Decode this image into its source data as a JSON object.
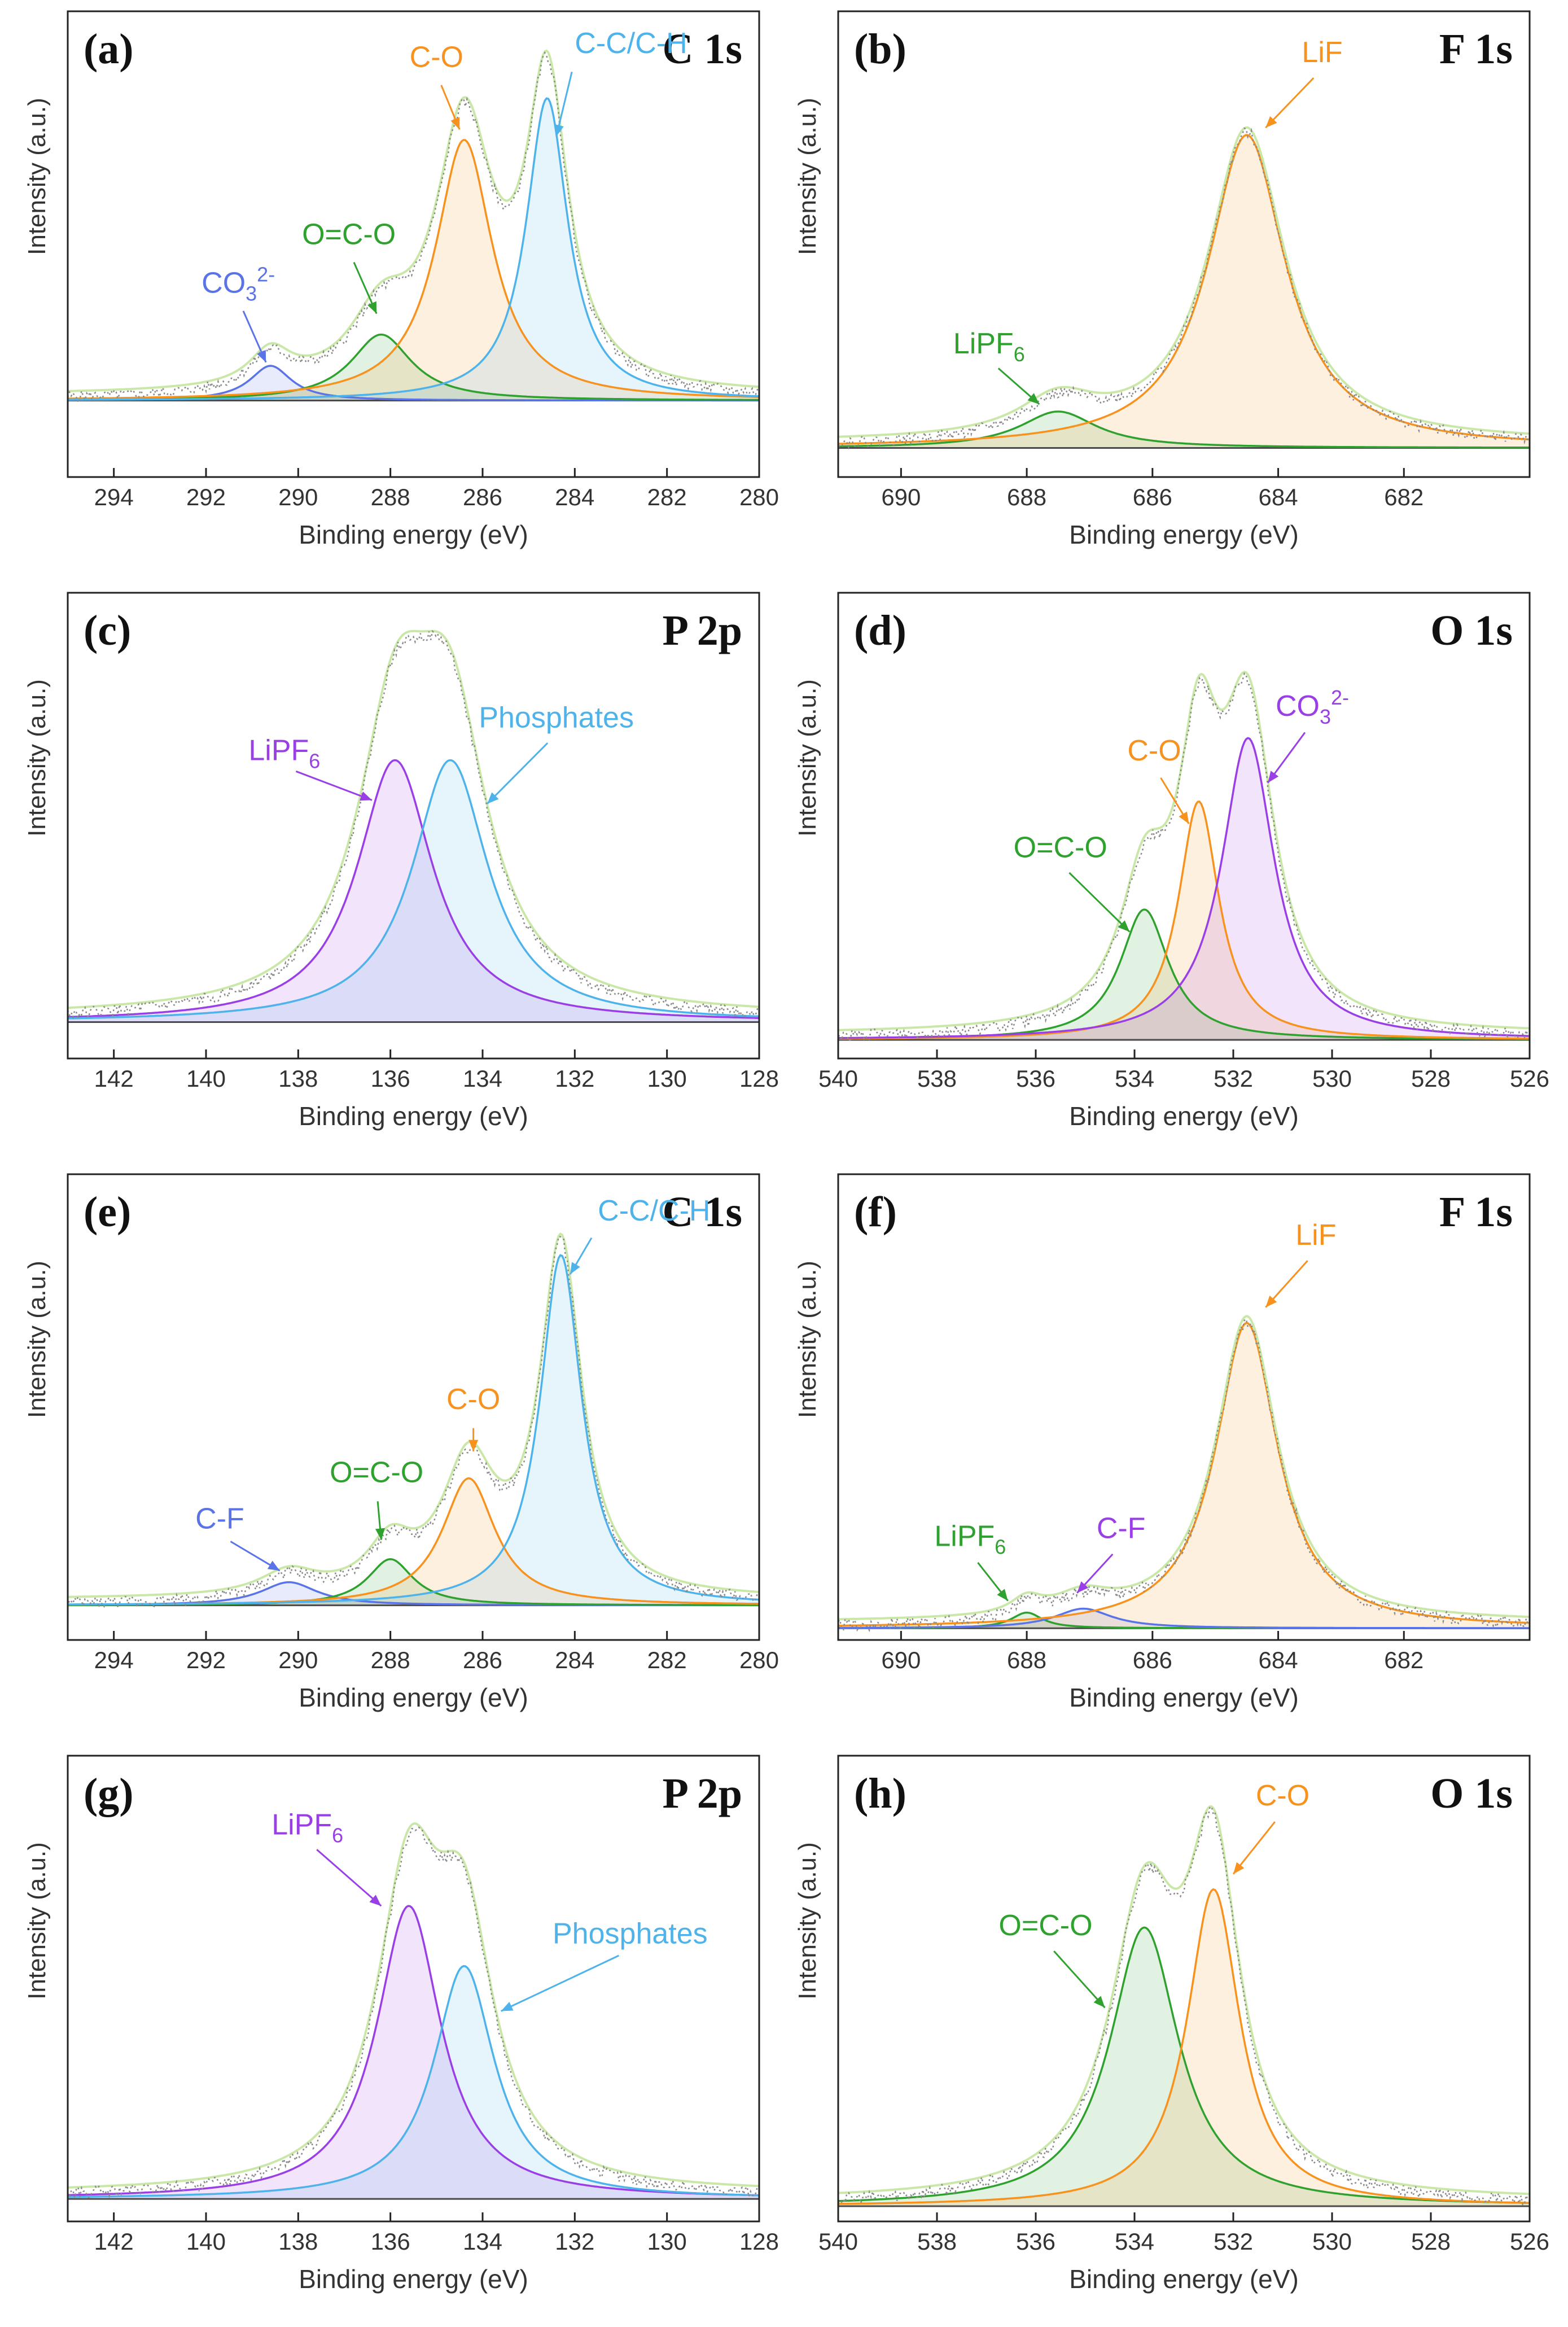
{
  "figure": {
    "xlabel_text": "Binding energy  (eV)",
    "ylabel_text": "Intensity (a.u.)"
  },
  "colors": {
    "blue": "#5a73e6",
    "green": "#2fa12f",
    "orange": "#f7921e",
    "sky": "#4db3ea",
    "purple": "#9a3fe6",
    "envelope": "#c9e8a8",
    "raw": "#8a8a8a",
    "background_line": "#4a4a4a"
  },
  "chart_data": [
    {
      "panel": "(a)",
      "title": "C 1s",
      "type": "line",
      "xlabel": "Binding energy  (eV)",
      "ylabel": "Intensity (a.u.)",
      "xlim": [
        295,
        280
      ],
      "ticks": [
        294,
        292,
        290,
        288,
        286,
        284,
        282,
        280
      ],
      "ylim": [
        -0.2,
        1.14
      ],
      "baseline": 0.02,
      "peaks": [
        {
          "name": "CO3 2-",
          "label": "CO",
          "sub": "3",
          "sup": "2-",
          "center": 290.6,
          "height": 0.1,
          "width": 0.55,
          "color": "blue"
        },
        {
          "name": "O=C-O",
          "label": "O=C-O",
          "center": 288.2,
          "height": 0.19,
          "width": 0.8,
          "color": "green"
        },
        {
          "name": "C-O",
          "label": "C-O",
          "center": 286.4,
          "height": 0.75,
          "width": 0.75,
          "color": "orange"
        },
        {
          "name": "C-C/C-H",
          "label": "C-C/C-H",
          "center": 284.6,
          "height": 0.87,
          "width": 0.55,
          "color": "sky"
        }
      ],
      "annotations": [
        {
          "text": "CO",
          "sub": "3",
          "sup": "2-",
          "x": 291.3,
          "y": 0.33,
          "ax": 290.7,
          "ay": 0.13,
          "color": "blue",
          "anchor": "middle"
        },
        {
          "text": "O=C-O",
          "x": 288.9,
          "y": 0.47,
          "ax": 288.3,
          "ay": 0.27,
          "color": "green",
          "anchor": "middle"
        },
        {
          "text": "C-O",
          "x": 287.0,
          "y": 0.98,
          "ax": 286.5,
          "ay": 0.8,
          "color": "orange",
          "anchor": "middle"
        },
        {
          "text": "C-C/C-H",
          "x": 284.0,
          "y": 1.02,
          "ax": 284.4,
          "ay": 0.78,
          "color": "sky",
          "anchor": "start"
        }
      ]
    },
    {
      "panel": "(b)",
      "title": "F 1s",
      "type": "line",
      "xlabel": "Binding energy  (eV)",
      "ylabel": "Intensity (a.u.)",
      "xlim": [
        691,
        680
      ],
      "ticks": [
        690,
        688,
        686,
        684,
        682
      ],
      "ylim": [
        -0.08,
        1.2
      ],
      "baseline": 0.0,
      "peaks": [
        {
          "name": "LiPF6",
          "label": "LiPF",
          "sub": "6",
          "center": 687.5,
          "height": 0.1,
          "width": 0.75,
          "color": "green"
        },
        {
          "name": "LiF",
          "label": "LiF",
          "center": 684.5,
          "height": 0.86,
          "width": 0.75,
          "color": "orange"
        }
      ],
      "annotations": [
        {
          "text": "LiPF",
          "sub": "6",
          "x": 688.6,
          "y": 0.26,
          "ax": 687.8,
          "ay": 0.12,
          "color": "green",
          "anchor": "middle"
        },
        {
          "text": "LiF",
          "x": 683.3,
          "y": 1.06,
          "ax": 684.2,
          "ay": 0.88,
          "color": "orange",
          "anchor": "middle"
        }
      ]
    },
    {
      "panel": "(c)",
      "title": "P 2p",
      "type": "line",
      "xlabel": "Binding energy  (eV)",
      "ylabel": "Intensity (a.u.)",
      "xlim": [
        143,
        128
      ],
      "ticks": [
        142,
        140,
        138,
        136,
        134,
        132,
        130,
        128
      ],
      "ylim": [
        -0.08,
        1.2
      ],
      "baseline": 0.02,
      "peaks": [
        {
          "name": "LiPF6",
          "label": "LiPF",
          "sub": "6",
          "center": 135.9,
          "height": 0.72,
          "width": 1.0,
          "color": "purple"
        },
        {
          "name": "Phosphates",
          "label": "Phosphates",
          "center": 134.7,
          "height": 0.72,
          "width": 1.0,
          "color": "sky"
        }
      ],
      "annotations": [
        {
          "text": "LiPF",
          "sub": "6",
          "x": 138.3,
          "y": 0.74,
          "ax": 136.4,
          "ay": 0.63,
          "color": "purple",
          "anchor": "middle"
        },
        {
          "text": "Phosphates",
          "x": 132.4,
          "y": 0.83,
          "ax": 133.9,
          "ay": 0.62,
          "color": "sky",
          "anchor": "middle"
        }
      ]
    },
    {
      "panel": "(d)",
      "title": "O 1s",
      "type": "line",
      "xlabel": "Binding energy  (eV)",
      "ylabel": "Intensity (a.u.)",
      "xlim": [
        540,
        526
      ],
      "ticks": [
        540,
        538,
        536,
        534,
        532,
        530,
        528,
        526
      ],
      "ylim": [
        -0.05,
        1.2
      ],
      "baseline": 0.0,
      "peaks": [
        {
          "name": "O=C-O",
          "label": "O=C-O",
          "center": 533.8,
          "height": 0.35,
          "width": 0.6,
          "color": "green"
        },
        {
          "name": "C-O",
          "label": "C-O",
          "center": 532.7,
          "height": 0.64,
          "width": 0.5,
          "color": "orange"
        },
        {
          "name": "CO3 2-",
          "label": "CO",
          "sub": "3",
          "sup": "2-",
          "center": 531.7,
          "height": 0.81,
          "width": 0.65,
          "color": "purple"
        }
      ],
      "annotations": [
        {
          "text": "O=C-O",
          "x": 535.5,
          "y": 0.49,
          "ax": 534.1,
          "ay": 0.29,
          "color": "green",
          "anchor": "middle"
        },
        {
          "text": "C-O",
          "x": 533.6,
          "y": 0.75,
          "ax": 532.9,
          "ay": 0.58,
          "color": "orange",
          "anchor": "middle"
        },
        {
          "text": "CO",
          "sub": "3",
          "sup": "2-",
          "x": 530.4,
          "y": 0.87,
          "ax": 531.3,
          "ay": 0.69,
          "color": "purple",
          "anchor": "middle"
        }
      ]
    },
    {
      "panel": "(e)",
      "title": "C 1s",
      "type": "line",
      "xlabel": "Binding energy  (eV)",
      "ylabel": "Intensity (a.u.)",
      "xlim": [
        295,
        280
      ],
      "ticks": [
        294,
        292,
        290,
        288,
        286,
        284,
        282,
        280
      ],
      "ylim": [
        -0.09,
        1.12
      ],
      "baseline": 0.0,
      "peaks": [
        {
          "name": "C-F",
          "label": "C-F",
          "center": 290.2,
          "height": 0.06,
          "width": 0.75,
          "color": "blue"
        },
        {
          "name": "O=C-O",
          "label": "O=C-O",
          "center": 288.0,
          "height": 0.12,
          "width": 0.6,
          "color": "green"
        },
        {
          "name": "C-O",
          "label": "C-O",
          "center": 286.3,
          "height": 0.33,
          "width": 0.7,
          "color": "orange"
        },
        {
          "name": "C-C/C-H",
          "label": "C-C/C-H",
          "center": 284.3,
          "height": 0.91,
          "width": 0.55,
          "color": "sky"
        }
      ],
      "annotations": [
        {
          "text": "C-F",
          "x": 291.7,
          "y": 0.2,
          "ax": 290.4,
          "ay": 0.09,
          "color": "blue",
          "anchor": "middle"
        },
        {
          "text": "O=C-O",
          "x": 288.3,
          "y": 0.32,
          "ax": 288.2,
          "ay": 0.17,
          "color": "green",
          "anchor": "middle"
        },
        {
          "text": "C-O",
          "x": 286.2,
          "y": 0.51,
          "ax": 286.2,
          "ay": 0.4,
          "color": "orange",
          "anchor": "middle"
        },
        {
          "text": "C-C/C-H",
          "x": 283.5,
          "y": 1.0,
          "ax": 284.1,
          "ay": 0.86,
          "color": "sky",
          "anchor": "start"
        }
      ]
    },
    {
      "panel": "(f)",
      "title": "F 1s",
      "type": "line",
      "xlabel": "Binding energy  (eV)",
      "ylabel": "Intensity (a.u.)",
      "xlim": [
        691,
        680
      ],
      "ticks": [
        690,
        688,
        686,
        684,
        682
      ],
      "ylim": [
        -0.03,
        1.16
      ],
      "baseline": 0.0,
      "peaks": [
        {
          "name": "LiPF6",
          "label": "LiPF",
          "sub": "6",
          "center": 688.0,
          "height": 0.04,
          "width": 0.3,
          "color": "green"
        },
        {
          "name": "C-F",
          "label": "C-F",
          "center": 687.1,
          "height": 0.05,
          "width": 0.55,
          "color": "blue"
        },
        {
          "name": "LiF",
          "label": "LiF",
          "center": 684.5,
          "height": 0.78,
          "width": 0.6,
          "color": "orange"
        }
      ],
      "annotations": [
        {
          "text": "LiPF",
          "sub": "6",
          "x": 688.9,
          "y": 0.21,
          "ax": 688.3,
          "ay": 0.07,
          "color": "green",
          "anchor": "middle"
        },
        {
          "text": "C-F",
          "x": 686.5,
          "y": 0.23,
          "ax": 687.2,
          "ay": 0.09,
          "color": "purple",
          "anchor": "middle"
        },
        {
          "text": "LiF",
          "x": 683.4,
          "y": 0.98,
          "ax": 684.2,
          "ay": 0.82,
          "color": "orange",
          "anchor": "middle"
        }
      ]
    },
    {
      "panel": "(g)",
      "title": "P 2p",
      "type": "line",
      "xlabel": "Binding energy  (eV)",
      "ylabel": "Intensity (a.u.)",
      "xlim": [
        143,
        128
      ],
      "ticks": [
        142,
        140,
        138,
        136,
        134,
        132,
        130,
        128
      ],
      "ylim": [
        -0.06,
        1.18
      ],
      "baseline": 0.0,
      "peaks": [
        {
          "name": "LiPF6",
          "label": "LiPF",
          "sub": "6",
          "center": 135.6,
          "height": 0.78,
          "width": 0.85,
          "color": "purple"
        },
        {
          "name": "Phosphates",
          "label": "Phosphates",
          "center": 134.4,
          "height": 0.62,
          "width": 0.8,
          "color": "sky"
        }
      ],
      "annotations": [
        {
          "text": "LiPF",
          "sub": "6",
          "x": 137.8,
          "y": 0.97,
          "ax": 136.2,
          "ay": 0.78,
          "color": "purple",
          "anchor": "middle"
        },
        {
          "text": "Phosphates",
          "x": 130.8,
          "y": 0.68,
          "ax": 133.6,
          "ay": 0.5,
          "color": "sky",
          "anchor": "middle"
        }
      ]
    },
    {
      "panel": "(h)",
      "title": "O 1s",
      "type": "line",
      "xlabel": "Binding energy  (eV)",
      "ylabel": "Intensity (a.u.)",
      "xlim": [
        540,
        526
      ],
      "ticks": [
        540,
        538,
        536,
        534,
        532,
        530,
        528,
        526
      ],
      "ylim": [
        -0.04,
        1.18
      ],
      "baseline": 0.0,
      "peaks": [
        {
          "name": "O=C-O",
          "label": "O=C-O",
          "center": 533.8,
          "height": 0.73,
          "width": 0.85,
          "color": "green"
        },
        {
          "name": "C-O",
          "label": "C-O",
          "center": 532.4,
          "height": 0.83,
          "width": 0.65,
          "color": "orange"
        }
      ],
      "annotations": [
        {
          "text": "O=C-O",
          "x": 535.8,
          "y": 0.71,
          "ax": 534.6,
          "ay": 0.52,
          "color": "green",
          "anchor": "middle"
        },
        {
          "text": "C-O",
          "x": 531.0,
          "y": 1.05,
          "ax": 532.0,
          "ay": 0.87,
          "color": "orange",
          "anchor": "middle"
        }
      ]
    }
  ]
}
